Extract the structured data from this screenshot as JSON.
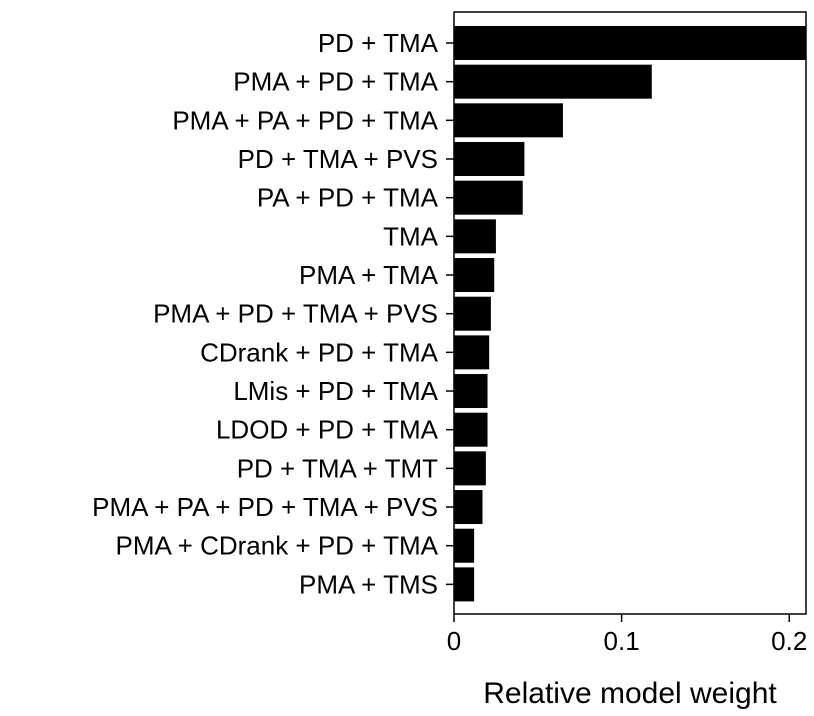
{
  "chart_data": {
    "type": "bar",
    "orientation": "horizontal",
    "categories": [
      "PD + TMA",
      "PMA + PD + TMA",
      "PMA + PA + PD + TMA",
      "PD + TMA + PVS",
      "PA + PD + TMA",
      "TMA",
      "PMA + TMA",
      "PMA + PD + TMA + PVS",
      "CDrank + PD + TMA",
      "LMis + PD + TMA",
      "LDOD + PD + TMA",
      "PD + TMA + TMT",
      "PMA + PA + PD + TMA + PVS",
      "PMA + CDrank + PD + TMA",
      "PMA + TMS"
    ],
    "values": [
      0.21,
      0.118,
      0.065,
      0.042,
      0.041,
      0.025,
      0.024,
      0.022,
      0.021,
      0.02,
      0.02,
      0.019,
      0.017,
      0.012,
      0.012
    ],
    "xlabel": "Relative model weight",
    "ylabel": "",
    "title": "",
    "xlim": [
      0,
      0.21
    ],
    "xticks": [
      0,
      0.1,
      0.2
    ],
    "xtick_labels": [
      "0",
      "0.1",
      "0.2"
    ],
    "bar_color": "#000000",
    "grid": false,
    "legend": "none"
  }
}
